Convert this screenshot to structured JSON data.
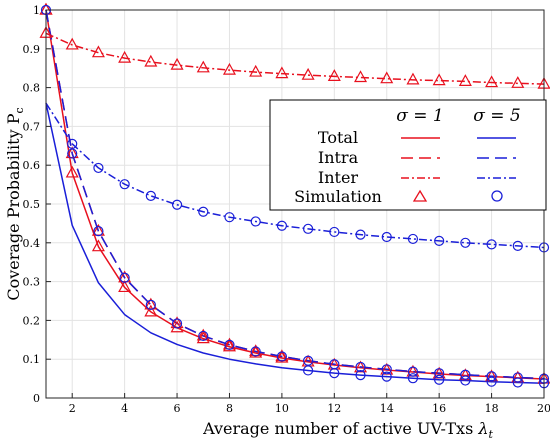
{
  "chart_data": {
    "type": "line",
    "xlabel": "Average number of active UV-Txs",
    "xlabel_symbol": "λ",
    "xlabel_subscript": "t",
    "ylabel": "Coverage Probability",
    "ylabel_symbol": "P",
    "ylabel_subscript": "c",
    "xlim": [
      1,
      20
    ],
    "ylim": [
      0,
      1
    ],
    "xticks": [
      2,
      4,
      6,
      8,
      10,
      12,
      14,
      16,
      18,
      20
    ],
    "yticks": [
      0,
      0.1,
      0.2,
      0.3,
      0.4,
      0.5,
      0.6,
      0.7,
      0.8,
      0.9,
      1
    ],
    "grid": true,
    "legend_position": "upper-right",
    "legend": {
      "col_headers": [
        "σ = 1",
        "σ = 5"
      ],
      "rows": [
        "Total",
        "Intra",
        "Inter",
        "Simulation"
      ]
    },
    "colors": {
      "sigma1": "#e8101e",
      "sigma5": "#1a1fd8"
    },
    "x": [
      1,
      2,
      3,
      4,
      5,
      6,
      7,
      8,
      9,
      10,
      11,
      12,
      13,
      14,
      15,
      16,
      17,
      18,
      19,
      20
    ],
    "series": [
      {
        "group": "σ = 1",
        "row": "Total",
        "style": "solid",
        "color": "#e8101e",
        "values": [
          1.0,
          0.58,
          0.39,
          0.285,
          0.222,
          0.181,
          0.153,
          0.132,
          0.116,
          0.103,
          0.093,
          0.085,
          0.078,
          0.072,
          0.067,
          0.062,
          0.058,
          0.055,
          0.052,
          0.049
        ]
      },
      {
        "group": "σ = 1",
        "row": "Intra",
        "style": "dashed",
        "color": "#e8101e",
        "values": [
          1.0,
          0.63,
          0.43,
          0.31,
          0.24,
          0.192,
          0.16,
          0.137,
          0.12,
          0.107,
          0.096,
          0.087,
          0.08,
          0.074,
          0.068,
          0.064,
          0.06,
          0.056,
          0.053,
          0.05
        ]
      },
      {
        "group": "σ = 1",
        "row": "Inter",
        "style": "dashdot",
        "color": "#e8101e",
        "values": [
          0.94,
          0.91,
          0.89,
          0.876,
          0.866,
          0.858,
          0.851,
          0.845,
          0.84,
          0.836,
          0.832,
          0.829,
          0.826,
          0.823,
          0.82,
          0.818,
          0.816,
          0.813,
          0.811,
          0.809
        ]
      },
      {
        "group": "σ = 5",
        "row": "Total",
        "style": "solid",
        "color": "#1a1fd8",
        "values": [
          0.76,
          0.445,
          0.297,
          0.215,
          0.168,
          0.138,
          0.116,
          0.1,
          0.088,
          0.078,
          0.071,
          0.064,
          0.059,
          0.055,
          0.051,
          0.047,
          0.045,
          0.042,
          0.04,
          0.038
        ]
      },
      {
        "group": "σ = 5",
        "row": "Intra",
        "style": "dashed",
        "color": "#1a1fd8",
        "values": [
          1.0,
          0.63,
          0.43,
          0.31,
          0.24,
          0.192,
          0.16,
          0.137,
          0.12,
          0.107,
          0.096,
          0.087,
          0.08,
          0.074,
          0.068,
          0.064,
          0.06,
          0.056,
          0.053,
          0.05
        ]
      },
      {
        "group": "σ = 5",
        "row": "Inter",
        "style": "dashdot",
        "color": "#1a1fd8",
        "values": [
          0.76,
          0.655,
          0.593,
          0.551,
          0.521,
          0.498,
          0.48,
          0.466,
          0.455,
          0.444,
          0.436,
          0.428,
          0.421,
          0.415,
          0.41,
          0.405,
          0.4,
          0.396,
          0.392,
          0.388
        ]
      }
    ],
    "simulation": [
      {
        "group": "σ = 1",
        "marker": "triangle",
        "color": "#e8101e",
        "points": [
          {
            "x": 1,
            "y": 1.0
          },
          {
            "x": 2,
            "y": 0.58
          },
          {
            "x": 3,
            "y": 0.39
          },
          {
            "x": 4,
            "y": 0.285
          },
          {
            "x": 5,
            "y": 0.222
          },
          {
            "x": 6,
            "y": 0.181
          },
          {
            "x": 7,
            "y": 0.153
          },
          {
            "x": 8,
            "y": 0.132
          },
          {
            "x": 9,
            "y": 0.116
          },
          {
            "x": 10,
            "y": 0.103
          },
          {
            "x": 11,
            "y": 0.093
          },
          {
            "x": 12,
            "y": 0.085
          },
          {
            "x": 13,
            "y": 0.078
          },
          {
            "x": 14,
            "y": 0.072
          },
          {
            "x": 15,
            "y": 0.067
          },
          {
            "x": 16,
            "y": 0.062
          },
          {
            "x": 17,
            "y": 0.058
          },
          {
            "x": 18,
            "y": 0.055
          },
          {
            "x": 19,
            "y": 0.052
          },
          {
            "x": 20,
            "y": 0.049
          },
          {
            "x": 1,
            "y": 1.0
          },
          {
            "x": 2,
            "y": 0.63
          },
          {
            "x": 3,
            "y": 0.43
          },
          {
            "x": 4,
            "y": 0.31
          },
          {
            "x": 5,
            "y": 0.24
          },
          {
            "x": 6,
            "y": 0.192
          },
          {
            "x": 7,
            "y": 0.16
          },
          {
            "x": 8,
            "y": 0.137
          },
          {
            "x": 9,
            "y": 0.12
          },
          {
            "x": 10,
            "y": 0.107
          },
          {
            "x": 1,
            "y": 0.94
          },
          {
            "x": 2,
            "y": 0.91
          },
          {
            "x": 3,
            "y": 0.89
          },
          {
            "x": 4,
            "y": 0.876
          },
          {
            "x": 5,
            "y": 0.866
          },
          {
            "x": 6,
            "y": 0.858
          },
          {
            "x": 7,
            "y": 0.851
          },
          {
            "x": 8,
            "y": 0.845
          },
          {
            "x": 9,
            "y": 0.84
          },
          {
            "x": 10,
            "y": 0.836
          },
          {
            "x": 11,
            "y": 0.832
          },
          {
            "x": 12,
            "y": 0.829
          },
          {
            "x": 13,
            "y": 0.826
          },
          {
            "x": 14,
            "y": 0.823
          },
          {
            "x": 15,
            "y": 0.82
          },
          {
            "x": 16,
            "y": 0.818
          },
          {
            "x": 17,
            "y": 0.816
          },
          {
            "x": 18,
            "y": 0.813
          },
          {
            "x": 19,
            "y": 0.811
          },
          {
            "x": 20,
            "y": 0.809
          }
        ]
      },
      {
        "group": "σ = 5",
        "marker": "circle",
        "color": "#1a1fd8",
        "points": [
          {
            "x": 1,
            "y": 1.0
          },
          {
            "x": 2,
            "y": 0.63
          },
          {
            "x": 3,
            "y": 0.43
          },
          {
            "x": 4,
            "y": 0.31
          },
          {
            "x": 5,
            "y": 0.24
          },
          {
            "x": 6,
            "y": 0.192
          },
          {
            "x": 7,
            "y": 0.16
          },
          {
            "x": 8,
            "y": 0.137
          },
          {
            "x": 9,
            "y": 0.12
          },
          {
            "x": 10,
            "y": 0.107
          },
          {
            "x": 11,
            "y": 0.096
          },
          {
            "x": 12,
            "y": 0.087
          },
          {
            "x": 13,
            "y": 0.08
          },
          {
            "x": 14,
            "y": 0.074
          },
          {
            "x": 15,
            "y": 0.068
          },
          {
            "x": 16,
            "y": 0.064
          },
          {
            "x": 17,
            "y": 0.06
          },
          {
            "x": 18,
            "y": 0.056
          },
          {
            "x": 19,
            "y": 0.053
          },
          {
            "x": 20,
            "y": 0.05
          },
          {
            "x": 2,
            "y": 0.655
          },
          {
            "x": 3,
            "y": 0.593
          },
          {
            "x": 4,
            "y": 0.551
          },
          {
            "x": 5,
            "y": 0.521
          },
          {
            "x": 6,
            "y": 0.498
          },
          {
            "x": 7,
            "y": 0.48
          },
          {
            "x": 8,
            "y": 0.466
          },
          {
            "x": 9,
            "y": 0.455
          },
          {
            "x": 10,
            "y": 0.444
          },
          {
            "x": 11,
            "y": 0.436
          },
          {
            "x": 12,
            "y": 0.428
          },
          {
            "x": 13,
            "y": 0.421
          },
          {
            "x": 14,
            "y": 0.415
          },
          {
            "x": 15,
            "y": 0.41
          },
          {
            "x": 16,
            "y": 0.405
          },
          {
            "x": 17,
            "y": 0.4
          },
          {
            "x": 18,
            "y": 0.396
          },
          {
            "x": 19,
            "y": 0.392
          },
          {
            "x": 20,
            "y": 0.388
          },
          {
            "x": 11,
            "y": 0.071
          },
          {
            "x": 12,
            "y": 0.064
          },
          {
            "x": 13,
            "y": 0.059
          },
          {
            "x": 14,
            "y": 0.055
          },
          {
            "x": 15,
            "y": 0.051
          },
          {
            "x": 16,
            "y": 0.047
          },
          {
            "x": 17,
            "y": 0.045
          },
          {
            "x": 18,
            "y": 0.042
          },
          {
            "x": 19,
            "y": 0.04
          },
          {
            "x": 20,
            "y": 0.038
          }
        ]
      }
    ]
  }
}
